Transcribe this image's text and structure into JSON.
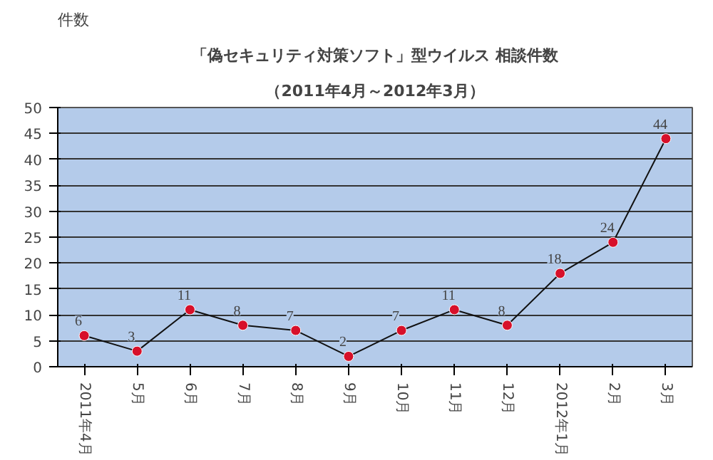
{
  "chart_data": {
    "type": "line",
    "title": "「偽セキュリティ対策ソフト」型ウイルス 相談件数",
    "subtitle": "（2011年4月～2012年3月）",
    "ylabel": "件数",
    "categories": [
      "2011年4月",
      "5月",
      "6月",
      "7月",
      "8月",
      "9月",
      "10月",
      "11月",
      "12月",
      "2012年1月",
      "2月",
      "3月"
    ],
    "series": [
      {
        "color": "#d7102a",
        "values": [
          6,
          3,
          11,
          8,
          7,
          2,
          7,
          11,
          8,
          18,
          24,
          44
        ]
      }
    ],
    "ylim": [
      0,
      50
    ],
    "yticks": [
      0,
      5,
      10,
      15,
      20,
      25,
      30,
      35,
      40,
      45,
      50
    ],
    "grid": "y",
    "marker": "circle",
    "line_style": "solid",
    "data_labels": true
  }
}
